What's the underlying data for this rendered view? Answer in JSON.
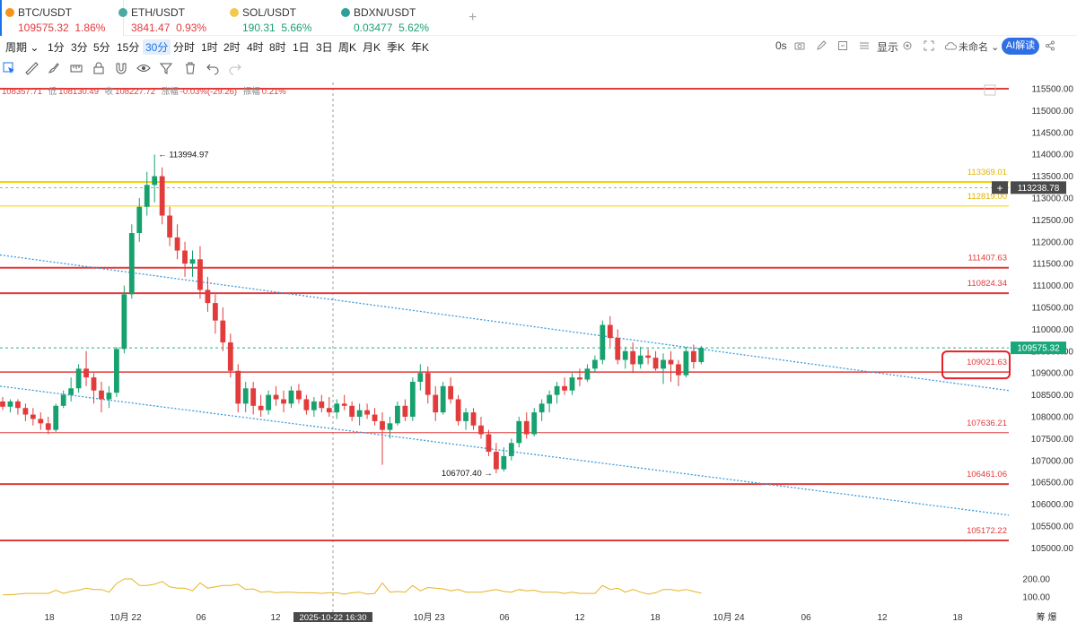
{
  "tabs": [
    {
      "symbol": "BTC/USDT",
      "price": "109575.32",
      "change": "1.86%",
      "dir": "down",
      "color": "#f7931a"
    },
    {
      "symbol": "ETH/USDT",
      "price": "3841.47",
      "change": "0.93%",
      "dir": "down",
      "color": "#4aa9a5"
    },
    {
      "symbol": "SOL/USDT",
      "price": "190.31",
      "change": "5.66%",
      "dir": "up",
      "color": "#f2c94c"
    },
    {
      "symbol": "BDXN/USDT",
      "price": "0.03477",
      "change": "5.62%",
      "dir": "up",
      "color": "#2ea09a"
    }
  ],
  "add_tab": "+",
  "timeframes": {
    "period_label": "周期",
    "items": [
      "1分",
      "3分",
      "5分",
      "15分",
      "30分",
      "分时",
      "1时",
      "2时",
      "4时",
      "8时",
      "1日",
      "3日",
      "周K",
      "月K",
      "季K",
      "年K"
    ],
    "selected": "30分"
  },
  "top_right": {
    "zero_s": "0s",
    "display": "显示",
    "unnamed": "未命名",
    "ai_button": "AI解读"
  },
  "tools": [
    "cursor-icon",
    "ruler-icon",
    "brush-icon",
    "measure-icon",
    "lock-icon",
    "magnet-icon",
    "eye-icon",
    "filter-icon",
    "trash-icon",
    "undo-icon",
    "redo-icon"
  ],
  "ohlc": {
    "open": "108357.71",
    "low_label": "低",
    "low": "108130.49",
    "close_label": "收",
    "close": "108227.72",
    "chg_label": "涨幅",
    "chg": "-0.03%(-29.26)",
    "amp_label": "振幅",
    "amp": "0.21%"
  },
  "colors": {
    "up": "#17a16f",
    "down": "#e23b3b",
    "accent": "#2f6fe4",
    "yellow": "#f5d200",
    "trend": "#3a9bdc"
  },
  "chart_data": {
    "type": "candlestick",
    "price_axis_labels": [
      "115500.00",
      "115000.00",
      "114500.00",
      "114000.00",
      "113500.00",
      "113000.00",
      "112500.00",
      "112000.00",
      "111500.00",
      "111000.00",
      "110500.00",
      "110000.00",
      "109500.00",
      "109000.00",
      "108500.00",
      "108000.00",
      "107500.00",
      "107000.00",
      "106500.00",
      "106000.00",
      "105500.00",
      "105000.00"
    ],
    "volume_axis_labels": [
      "200.00",
      "100.00"
    ],
    "time_axis_labels": [
      "18",
      "10月 22",
      "06",
      "12",
      "10月 23",
      "06",
      "12",
      "18",
      "10月 24",
      "06",
      "12",
      "18"
    ],
    "crosshair_time": "2025-10-22 16:30",
    "axis_bottom_right": "筹 爆",
    "current_price": 109575.32,
    "crosshair_price": 113238.78,
    "high_marker": 113994.97,
    "low_marker": 106707.4,
    "horizontal_levels": [
      {
        "value": 115500.0,
        "label": "",
        "color": "red",
        "style": "thick"
      },
      {
        "value": 113369.01,
        "label": "113369.01",
        "color": "yellow",
        "style": "thick"
      },
      {
        "value": 112819.0,
        "label": "112819.00",
        "color": "yellow",
        "style": "thin"
      },
      {
        "value": 111407.63,
        "label": "111407.63",
        "color": "red",
        "style": "thick"
      },
      {
        "value": 110824.34,
        "label": "110824.34",
        "color": "red",
        "style": "thick"
      },
      {
        "value": 109021.63,
        "label": "109021.63",
        "color": "red",
        "style": "medium",
        "highlighted": true
      },
      {
        "value": 107636.21,
        "label": "107636.21",
        "color": "red",
        "style": "thin"
      },
      {
        "value": 106461.06,
        "label": "106461.06",
        "color": "red",
        "style": "thick"
      },
      {
        "value": 105172.22,
        "label": "105172.22",
        "color": "red",
        "style": "thick"
      }
    ],
    "trendlines": [
      {
        "from": 111700,
        "to": 108600,
        "style": "dotted"
      },
      {
        "from": 108700,
        "to": 105750,
        "style": "dotted"
      }
    ],
    "candles": [
      [
        108350,
        108450,
        108150,
        108230
      ],
      [
        108230,
        108400,
        108100,
        108350
      ],
      [
        108350,
        108400,
        108050,
        108200
      ],
      [
        108200,
        108300,
        107900,
        108050
      ],
      [
        108050,
        108200,
        107800,
        107950
      ],
      [
        107950,
        108100,
        107700,
        107850
      ],
      [
        107850,
        108000,
        107600,
        107700
      ],
      [
        107700,
        108300,
        107650,
        108250
      ],
      [
        108250,
        108600,
        108200,
        108500
      ],
      [
        108500,
        108900,
        108350,
        108650
      ],
      [
        108650,
        109200,
        108550,
        109100
      ],
      [
        109100,
        109500,
        108700,
        108900
      ],
      [
        108900,
        109000,
        108300,
        108600
      ],
      [
        108600,
        108800,
        108100,
        108400
      ],
      [
        108400,
        108700,
        108200,
        108550
      ],
      [
        108550,
        109600,
        108450,
        109550
      ],
      [
        109550,
        111000,
        109450,
        110800
      ],
      [
        110800,
        112400,
        110700,
        112200
      ],
      [
        112200,
        113000,
        112000,
        112800
      ],
      [
        112800,
        113600,
        112600,
        113300
      ],
      [
        113300,
        113994.97,
        112900,
        113500
      ],
      [
        113500,
        113700,
        112400,
        112600
      ],
      [
        112600,
        112800,
        111900,
        112100
      ],
      [
        112100,
        112400,
        111600,
        111800
      ],
      [
        111800,
        112000,
        111200,
        111500
      ],
      [
        111500,
        111800,
        111200,
        111600
      ],
      [
        111600,
        111900,
        110700,
        110900
      ],
      [
        110900,
        111200,
        110400,
        110600
      ],
      [
        110600,
        110800,
        109900,
        110200
      ],
      [
        110200,
        110500,
        109500,
        109700
      ],
      [
        109700,
        109900,
        108900,
        109050
      ],
      [
        109050,
        109200,
        108100,
        108300
      ],
      [
        108300,
        108800,
        108100,
        108650
      ],
      [
        108650,
        108800,
        108050,
        108250
      ],
      [
        108250,
        108500,
        108000,
        108150
      ],
      [
        108150,
        108600,
        108050,
        108500
      ],
      [
        108500,
        108700,
        108250,
        108400
      ],
      [
        108400,
        108600,
        108100,
        108300
      ],
      [
        108300,
        108700,
        108200,
        108600
      ],
      [
        108600,
        108750,
        108300,
        108400
      ],
      [
        108400,
        108500,
        108050,
        108150
      ],
      [
        108150,
        108450,
        108000,
        108350
      ],
      [
        108350,
        108500,
        108100,
        108200
      ],
      [
        108200,
        108450,
        108000,
        108100
      ],
      [
        108100,
        108400,
        107950,
        108300
      ],
      [
        108300,
        108500,
        108150,
        108250
      ],
      [
        108250,
        108350,
        107900,
        108000
      ],
      [
        108000,
        108300,
        107800,
        108150
      ],
      [
        108150,
        108300,
        107950,
        108050
      ],
      [
        108050,
        108200,
        107800,
        107900
      ],
      [
        107900,
        108100,
        106900,
        107700
      ],
      [
        107700,
        108000,
        107500,
        107850
      ],
      [
        107850,
        108350,
        107800,
        108250
      ],
      [
        108250,
        108400,
        107900,
        108000
      ],
      [
        108000,
        108900,
        107900,
        108800
      ],
      [
        108800,
        109200,
        108600,
        109000
      ],
      [
        109000,
        109150,
        108300,
        108500
      ],
      [
        108500,
        108700,
        107900,
        108100
      ],
      [
        108100,
        108800,
        108050,
        108700
      ],
      [
        108700,
        108900,
        108300,
        108400
      ],
      [
        108400,
        108500,
        107800,
        107900
      ],
      [
        107900,
        108200,
        107700,
        108100
      ],
      [
        108100,
        108200,
        107700,
        107800
      ],
      [
        107800,
        108000,
        107500,
        107600
      ],
      [
        107600,
        107700,
        107100,
        107200
      ],
      [
        107200,
        107400,
        106707.4,
        106800
      ],
      [
        106800,
        107300,
        106750,
        107100
      ],
      [
        107100,
        107500,
        107000,
        107400
      ],
      [
        107400,
        108000,
        107300,
        107900
      ],
      [
        107900,
        108100,
        107500,
        107600
      ],
      [
        107600,
        108200,
        107550,
        108100
      ],
      [
        108100,
        108400,
        107900,
        108300
      ],
      [
        108300,
        108600,
        108100,
        108500
      ],
      [
        108500,
        108800,
        108300,
        108700
      ],
      [
        108700,
        108900,
        108500,
        108600
      ],
      [
        108600,
        109000,
        108500,
        108900
      ],
      [
        108900,
        109100,
        108700,
        108850
      ],
      [
        108850,
        109200,
        108800,
        109100
      ],
      [
        109100,
        109400,
        109000,
        109300
      ],
      [
        109300,
        110200,
        109200,
        110100
      ],
      [
        110100,
        110300,
        109600,
        109800
      ],
      [
        109800,
        110000,
        109200,
        109300
      ],
      [
        109300,
        109600,
        109100,
        109500
      ],
      [
        109500,
        109700,
        109000,
        109200
      ],
      [
        109200,
        109600,
        109100,
        109400
      ],
      [
        109400,
        109550,
        109200,
        109350
      ],
      [
        109350,
        109500,
        109050,
        109100
      ],
      [
        109100,
        109450,
        108750,
        109300
      ],
      [
        109300,
        109500,
        108800,
        109200
      ],
      [
        109200,
        109300,
        108700,
        108950
      ],
      [
        108950,
        109600,
        108900,
        109500
      ],
      [
        109500,
        109650,
        109100,
        109250
      ],
      [
        109250,
        109620,
        109200,
        109575.32
      ]
    ]
  }
}
